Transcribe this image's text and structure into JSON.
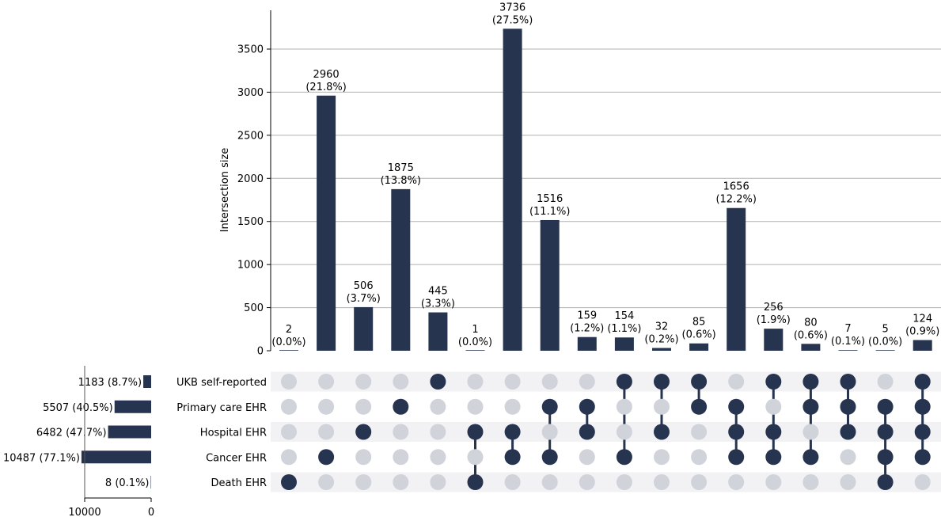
{
  "chart_data": {
    "type": "upset",
    "ylabel": "Intersection size",
    "ylim": [
      0,
      3950
    ],
    "yticks": [
      0,
      500,
      1000,
      1500,
      2000,
      2500,
      3000,
      3500
    ],
    "grid": true,
    "bar_color": "#27344f",
    "inactive_dot_color": "#d0d3da",
    "stripe_color": "#f2f2f5",
    "sets": [
      {
        "name": "UKB self-reported",
        "size": 1183,
        "label": "1183 (8.7%)"
      },
      {
        "name": "Primary care EHR",
        "size": 5507,
        "label": "5507 (40.5%)"
      },
      {
        "name": "Hospital EHR",
        "size": 6482,
        "label": "6482 (47.7%)"
      },
      {
        "name": "Cancer EHR",
        "size": 10487,
        "label": "10487 (77.1%)"
      },
      {
        "name": "Death EHR",
        "size": 8,
        "label": "8 (0.1%)"
      }
    ],
    "set_size_axis": {
      "max": 10000,
      "ticks": [
        10000,
        0
      ]
    },
    "intersections": [
      {
        "value": 2,
        "label": "2",
        "pct": "(0.0%)",
        "sets": [
          4
        ]
      },
      {
        "value": 2960,
        "label": "2960",
        "pct": "(21.8%)",
        "sets": [
          3
        ]
      },
      {
        "value": 506,
        "label": "506",
        "pct": "(3.7%)",
        "sets": [
          2
        ]
      },
      {
        "value": 1875,
        "label": "1875",
        "pct": "(13.8%)",
        "sets": [
          1
        ]
      },
      {
        "value": 445,
        "label": "445",
        "pct": "(3.3%)",
        "sets": [
          0
        ]
      },
      {
        "value": 1,
        "label": "1",
        "pct": "(0.0%)",
        "sets": [
          2,
          4
        ]
      },
      {
        "value": 3736,
        "label": "3736",
        "pct": "(27.5%)",
        "sets": [
          2,
          3
        ]
      },
      {
        "value": 1516,
        "label": "1516",
        "pct": "(11.1%)",
        "sets": [
          1,
          3
        ]
      },
      {
        "value": 159,
        "label": "159",
        "pct": "(1.2%)",
        "sets": [
          1,
          2
        ]
      },
      {
        "value": 154,
        "label": "154",
        "pct": "(1.1%)",
        "sets": [
          0,
          3
        ]
      },
      {
        "value": 32,
        "label": "32",
        "pct": "(0.2%)",
        "sets": [
          0,
          2
        ]
      },
      {
        "value": 85,
        "label": "85",
        "pct": "(0.6%)",
        "sets": [
          0,
          1
        ]
      },
      {
        "value": 1656,
        "label": "1656",
        "pct": "(12.2%)",
        "sets": [
          1,
          2,
          3
        ]
      },
      {
        "value": 256,
        "label": "256",
        "pct": "(1.9%)",
        "sets": [
          0,
          2,
          3
        ]
      },
      {
        "value": 80,
        "label": "80",
        "pct": "(0.6%)",
        "sets": [
          0,
          1,
          3
        ]
      },
      {
        "value": 7,
        "label": "7",
        "pct": "(0.1%)",
        "sets": [
          0,
          1,
          2
        ]
      },
      {
        "value": 5,
        "label": "5",
        "pct": "(0.0%)",
        "sets": [
          1,
          2,
          3,
          4
        ]
      },
      {
        "value": 124,
        "label": "124",
        "pct": "(0.9%)",
        "sets": [
          0,
          1,
          2,
          3
        ]
      }
    ]
  }
}
